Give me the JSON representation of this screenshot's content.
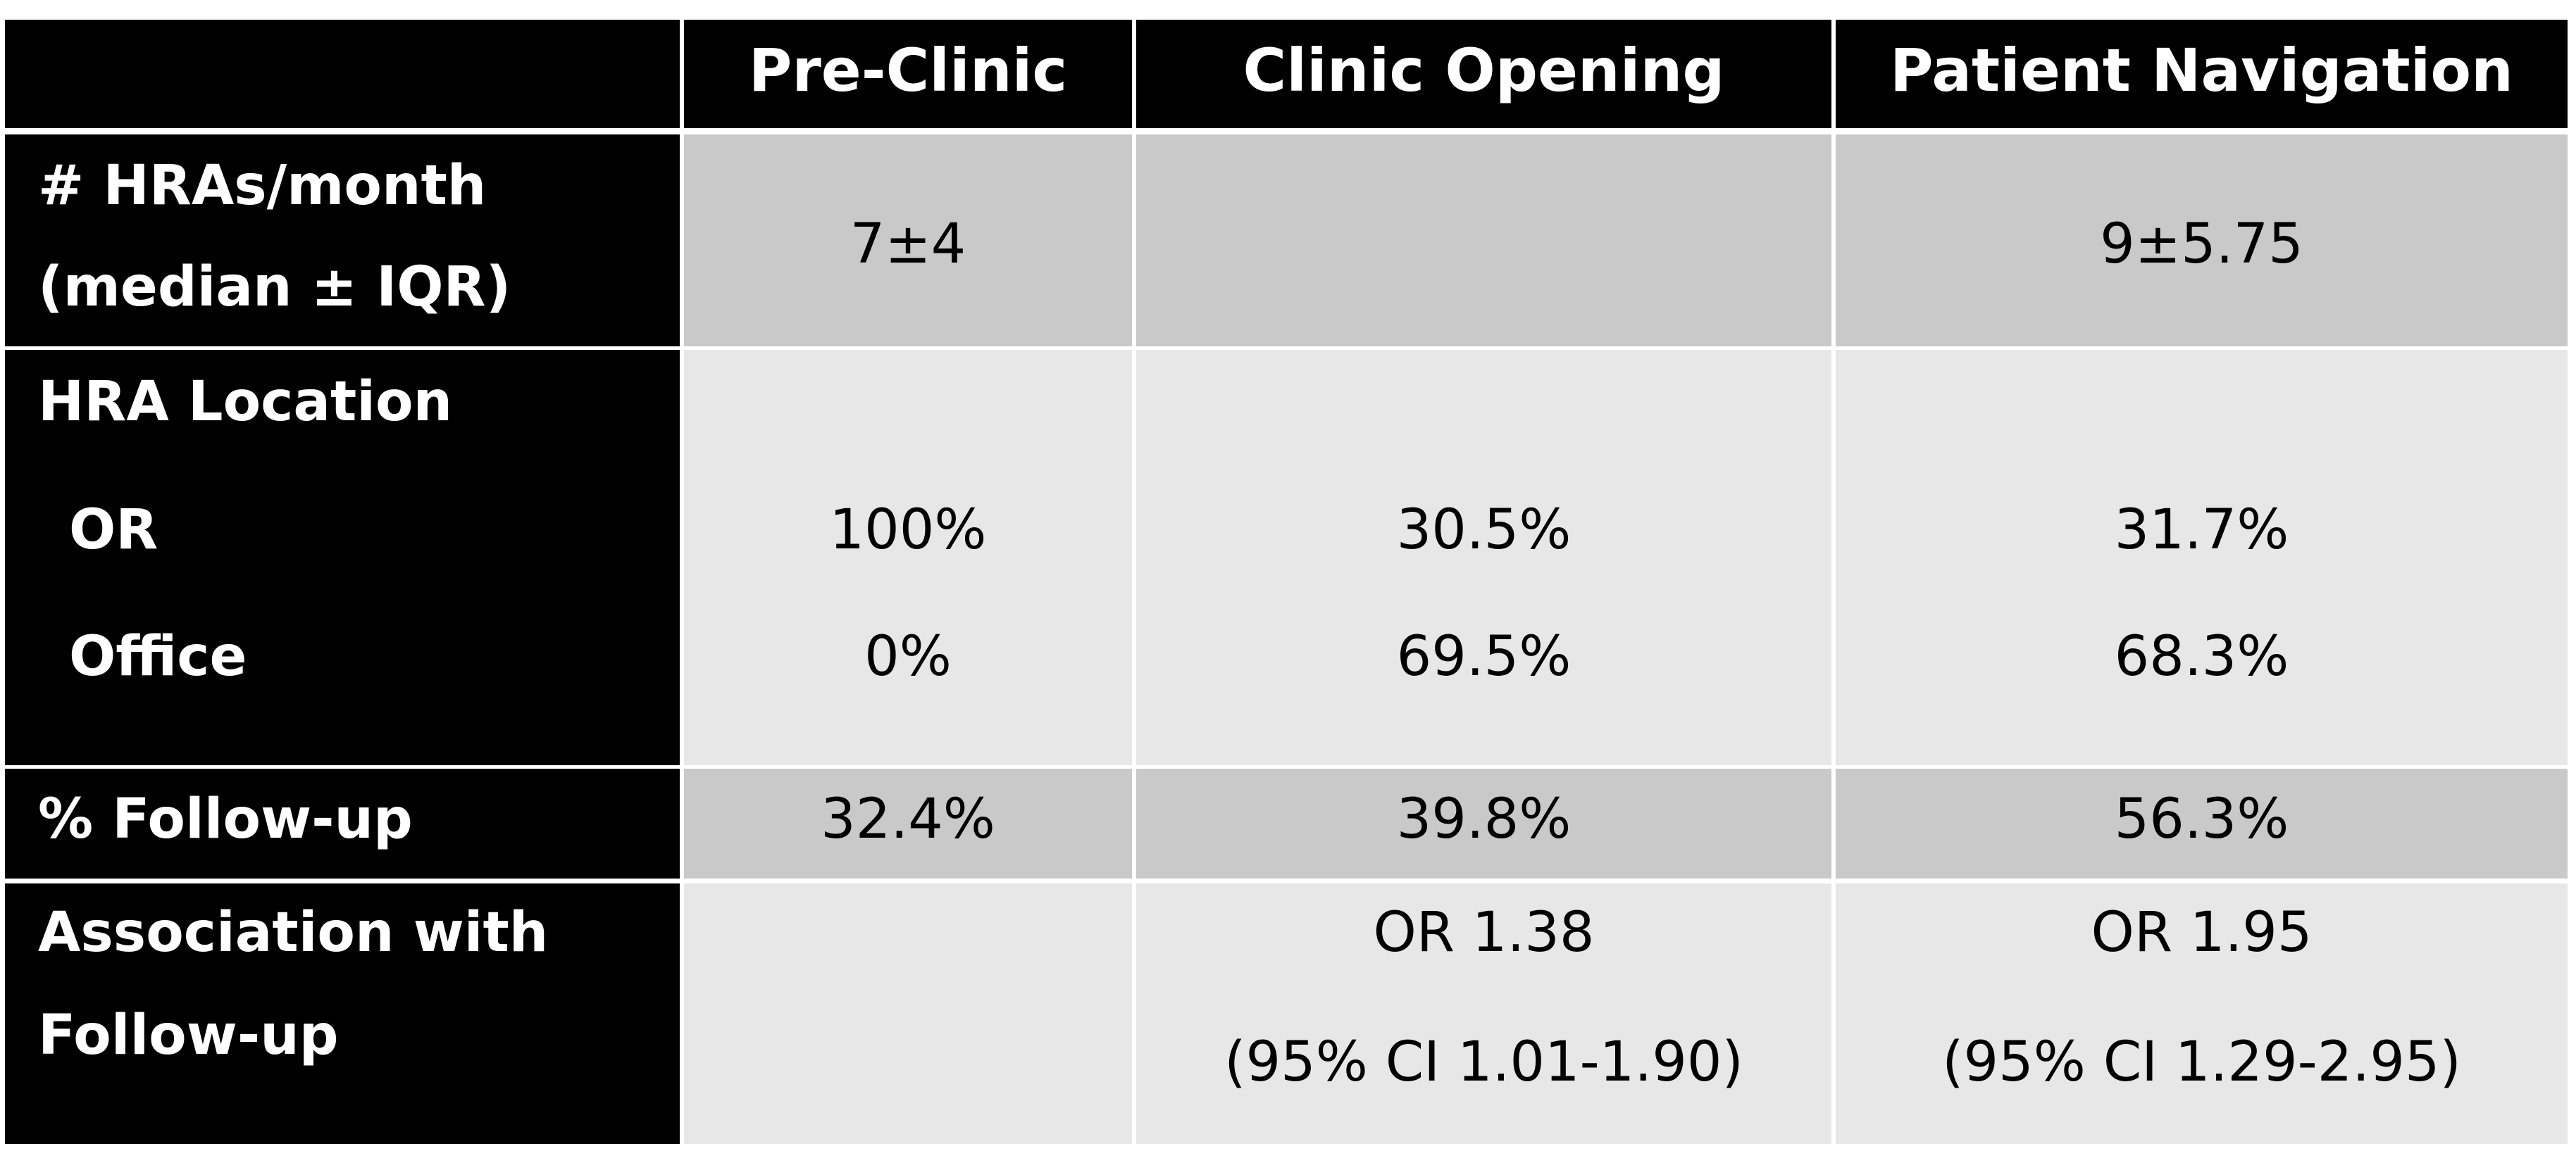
{
  "table": {
    "header": {
      "columns": [
        "Pre-Clinic",
        "Clinic Opening",
        "Patient Navigation"
      ]
    },
    "rows": [
      {
        "label": [
          "# HRAs/month",
          "(median ± IQR)"
        ],
        "cells": [
          "7±4",
          null,
          "9±5.75"
        ]
      },
      {
        "label": [
          "HRA Location"
        ],
        "subrows": [
          {
            "label": "OR",
            "cells": [
              "100%",
              "30.5%",
              "31.7%"
            ]
          },
          {
            "label": "Office",
            "cells": [
              "0%",
              "69.5%",
              "68.3%"
            ]
          }
        ]
      },
      {
        "label": [
          "% Follow-up"
        ],
        "cells": [
          "32.4%",
          "39.8%",
          "56.3%"
        ]
      },
      {
        "label": [
          "Association with",
          "Follow-up"
        ],
        "cells": [
          null,
          [
            "OR 1.38",
            "(95% CI 1.01-1.90)"
          ],
          [
            "OR 1.95",
            "(95% CI 1.29-2.95)"
          ]
        ]
      }
    ]
  }
}
